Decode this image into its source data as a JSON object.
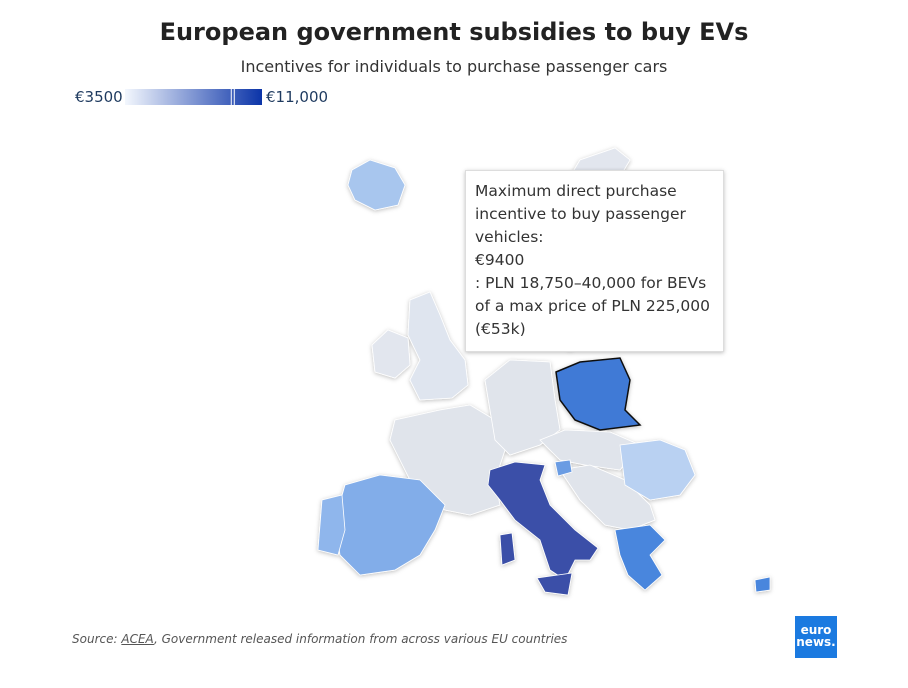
{
  "header": {
    "title": "European government subsidies to buy EVs",
    "subtitle": "Incentives for individuals to purchase passenger cars"
  },
  "legend": {
    "min": {
      "value": 3500,
      "label": "€3500"
    },
    "max": {
      "value": 11000,
      "label": "€11,000"
    }
  },
  "tooltip": {
    "heading": "Maximum direct purchase incentive to buy passenger vehicles:",
    "value": {
      "value": 9400,
      "label": "€9400"
    },
    "detail": ": PLN 18,750–40,000 for BEVs of a max price of PLN 225,000 (€53k)"
  },
  "footer": {
    "source_prefix": "Source:",
    "source_link": "ACEA",
    "source_rest": ", Government released information from across various EU countries"
  },
  "logo": {
    "line1": "euro",
    "line2": "news."
  }
}
